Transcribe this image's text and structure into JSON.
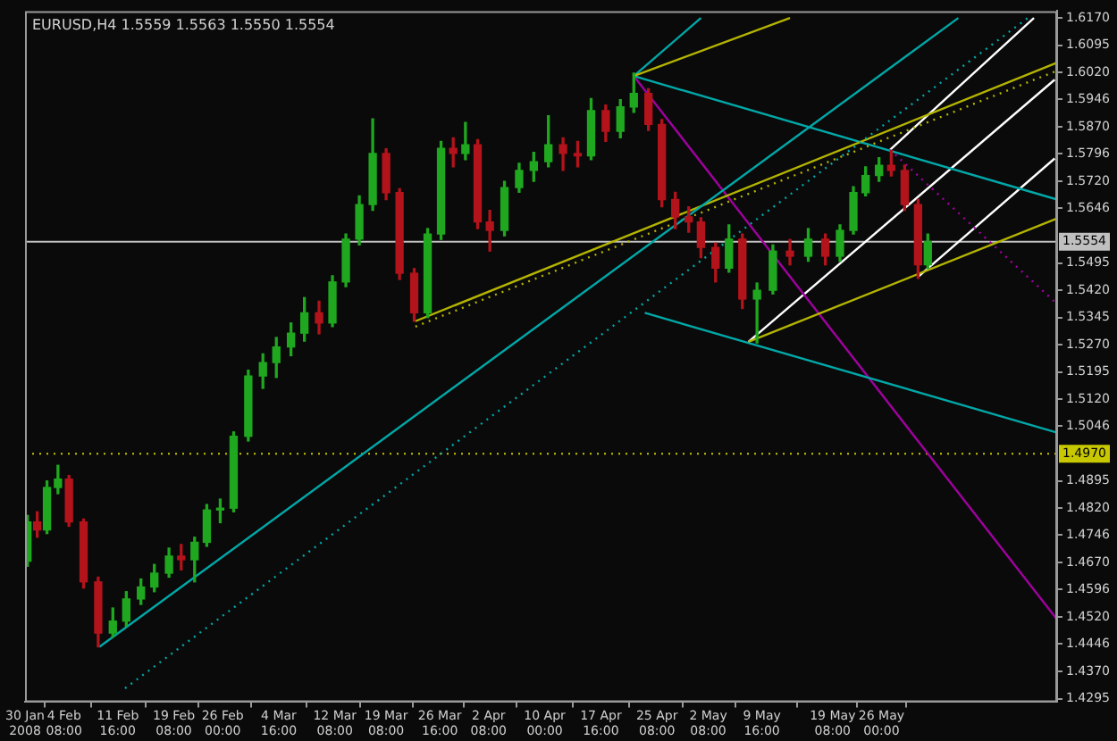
{
  "chart_data": {
    "type": "candlestick",
    "title": "EURUSD,H4 1.5559 1.5563 1.5550 1.5554",
    "xlim": [
      "2008-01-30T00:00",
      "2008-06-19T00:00"
    ],
    "xticks": [
      {
        "value": "2008-01-30T00:00",
        "label": "30 Jan 2008"
      },
      {
        "value": "2008-02-04T08:00",
        "label": "4 Feb 08:00"
      },
      {
        "value": "2008-02-11T16:00",
        "label": "11 Feb 16:00"
      },
      {
        "value": "2008-02-19T08:00",
        "label": "19 Feb 08:00"
      },
      {
        "value": "2008-02-26T00:00",
        "label": "26 Feb 00:00"
      },
      {
        "value": "2008-03-04T16:00",
        "label": "4 Mar 16:00"
      },
      {
        "value": "2008-03-12T08:00",
        "label": "12 Mar 08:00"
      },
      {
        "value": "2008-03-19T08:00",
        "label": "19 Mar 08:00"
      },
      {
        "value": "2008-03-26T16:00",
        "label": "26 Mar 16:00"
      },
      {
        "value": "2008-04-02T08:00",
        "label": "2 Apr 08:00"
      },
      {
        "value": "2008-04-10T00:00",
        "label": "10 Apr 00:00"
      },
      {
        "value": "2008-04-17T16:00",
        "label": "17 Apr 16:00"
      },
      {
        "value": "2008-04-25T08:00",
        "label": "25 Apr 08:00"
      },
      {
        "value": "2008-05-02T08:00",
        "label": "2 May 08:00"
      },
      {
        "value": "2008-05-09T16:00",
        "label": "9 May 16:00"
      },
      {
        "value": "2008-05-19T08:00",
        "label": "19 May 08:00"
      },
      {
        "value": "2008-05-26T00:00",
        "label": "26 May 00:00"
      }
    ],
    "ylim": [
      1.4286,
      1.6189
    ],
    "yticks": [
      {
        "value": 1.617,
        "label": "1.6170"
      },
      {
        "value": 1.6095,
        "label": "1.6095"
      },
      {
        "value": 1.602,
        "label": "1.6020"
      },
      {
        "value": 1.5946,
        "label": "1.5946"
      },
      {
        "value": 1.587,
        "label": "1.5870"
      },
      {
        "value": 1.5796,
        "label": "1.5796"
      },
      {
        "value": 1.572,
        "label": "1.5720"
      },
      {
        "value": 1.5646,
        "label": "1.5646"
      },
      {
        "value": 1.5495,
        "label": "1.5495"
      },
      {
        "value": 1.542,
        "label": "1.5420"
      },
      {
        "value": 1.5345,
        "label": "1.5345"
      },
      {
        "value": 1.527,
        "label": "1.5270"
      },
      {
        "value": 1.5195,
        "label": "1.5195"
      },
      {
        "value": 1.512,
        "label": "1.5120"
      },
      {
        "value": 1.5046,
        "label": "1.5046"
      },
      {
        "value": 1.4895,
        "label": "1.4895"
      },
      {
        "value": 1.482,
        "label": "1.4820"
      },
      {
        "value": 1.4746,
        "label": "1.4746"
      },
      {
        "value": 1.467,
        "label": "1.4670"
      },
      {
        "value": 1.4596,
        "label": "1.4596"
      },
      {
        "value": 1.452,
        "label": "1.4520"
      },
      {
        "value": 1.4446,
        "label": "1.4446"
      },
      {
        "value": 1.437,
        "label": "1.4370"
      },
      {
        "value": 1.4295,
        "label": "1.4295"
      }
    ],
    "ref_lines": [
      {
        "axis": "y",
        "value": 1.5554,
        "label": "1.5554",
        "color": "#c0c0c0",
        "line_style": "solid"
      },
      {
        "axis": "y",
        "value": 1.497,
        "label": "1.4970",
        "color": "#c8c800",
        "line_style": "dotted"
      }
    ],
    "series": [
      {
        "type": "candlestick",
        "x": [
          "2008-01-30T08:00",
          "2008-01-31T16:00",
          "2008-02-02T00:00",
          "2008-02-03T12:00",
          "2008-02-05T00:00",
          "2008-02-07T00:00",
          "2008-02-09T00:00",
          "2008-02-11T00:00",
          "2008-02-12T20:00",
          "2008-02-14T20:00",
          "2008-02-16T16:00",
          "2008-02-18T16:00",
          "2008-02-20T08:00",
          "2008-02-22T04:00",
          "2008-02-23T20:00",
          "2008-02-25T16:00",
          "2008-02-27T12:00",
          "2008-02-29T12:00",
          "2008-03-02T12:00",
          "2008-03-04T08:00",
          "2008-03-06T08:00",
          "2008-03-08T04:00",
          "2008-03-10T04:00",
          "2008-03-12T00:00",
          "2008-03-13T20:00",
          "2008-03-15T16:00",
          "2008-03-17T12:00",
          "2008-03-19T08:00",
          "2008-03-21T04:00",
          "2008-03-23T04:00",
          "2008-03-25T00:00",
          "2008-03-26T20:00",
          "2008-03-28T12:00",
          "2008-03-30T04:00",
          "2008-03-31T20:00",
          "2008-04-02T12:00",
          "2008-04-04T12:00",
          "2008-04-06T12:00",
          "2008-04-08T12:00",
          "2008-04-10T12:00",
          "2008-04-12T12:00",
          "2008-04-14T12:00",
          "2008-04-16T08:00",
          "2008-04-18T08:00",
          "2008-04-20T08:00",
          "2008-04-22T04:00",
          "2008-04-24T04:00",
          "2008-04-26T00:00",
          "2008-04-27T20:00",
          "2008-04-29T16:00",
          "2008-05-01T08:00",
          "2008-05-03T08:00",
          "2008-05-05T04:00",
          "2008-05-07T00:00",
          "2008-05-09T00:00",
          "2008-05-11T04:00",
          "2008-05-13T12:00",
          "2008-05-16T00:00",
          "2008-05-18T08:00",
          "2008-05-20T08:00",
          "2008-05-22T04:00",
          "2008-05-23T20:00",
          "2008-05-25T16:00",
          "2008-05-27T08:00",
          "2008-05-29T04:00",
          "2008-05-31T00:00",
          "2008-06-01T08:00"
        ],
        "ohlc": [
          [
            1.4674,
            1.48,
            1.466,
            1.4782
          ],
          [
            1.4782,
            1.481,
            1.474,
            1.476
          ],
          [
            1.476,
            1.4895,
            1.475,
            1.4877
          ],
          [
            1.4877,
            1.4938,
            1.486,
            1.49
          ],
          [
            1.49,
            1.491,
            1.477,
            1.4782
          ],
          [
            1.4782,
            1.479,
            1.46,
            1.4617
          ],
          [
            1.4617,
            1.463,
            1.4438,
            1.4476
          ],
          [
            1.4476,
            1.4545,
            1.4465,
            1.4509
          ],
          [
            1.4509,
            1.459,
            1.4495,
            1.457
          ],
          [
            1.457,
            1.4625,
            1.4555,
            1.4603
          ],
          [
            1.4603,
            1.4665,
            1.459,
            1.4641
          ],
          [
            1.4641,
            1.471,
            1.463,
            1.4688
          ],
          [
            1.4688,
            1.472,
            1.465,
            1.4678
          ],
          [
            1.4678,
            1.474,
            1.4617,
            1.4726
          ],
          [
            1.4726,
            1.483,
            1.4715,
            1.4815
          ],
          [
            1.4815,
            1.4845,
            1.478,
            1.482
          ],
          [
            1.482,
            1.503,
            1.481,
            1.5018
          ],
          [
            1.5018,
            1.52,
            1.5005,
            1.5184
          ],
          [
            1.5184,
            1.5245,
            1.515,
            1.5221
          ],
          [
            1.5221,
            1.529,
            1.518,
            1.5264
          ],
          [
            1.5264,
            1.533,
            1.524,
            1.5302
          ],
          [
            1.5302,
            1.54,
            1.528,
            1.5358
          ],
          [
            1.5358,
            1.539,
            1.53,
            1.533
          ],
          [
            1.533,
            1.546,
            1.532,
            1.5443
          ],
          [
            1.5443,
            1.5575,
            1.543,
            1.5561
          ],
          [
            1.5561,
            1.568,
            1.5545,
            1.5656
          ],
          [
            1.5656,
            1.5892,
            1.564,
            1.5797
          ],
          [
            1.5797,
            1.581,
            1.567,
            1.5689
          ],
          [
            1.5689,
            1.57,
            1.545,
            1.5467
          ],
          [
            1.5467,
            1.548,
            1.5335,
            1.5358
          ],
          [
            1.5358,
            1.559,
            1.5345,
            1.5575
          ],
          [
            1.5575,
            1.583,
            1.556,
            1.5811
          ],
          [
            1.5811,
            1.584,
            1.576,
            1.5797
          ],
          [
            1.5797,
            1.5882,
            1.578,
            1.5821
          ],
          [
            1.5821,
            1.5835,
            1.559,
            1.5608
          ],
          [
            1.5608,
            1.564,
            1.5528,
            1.5585
          ],
          [
            1.5585,
            1.572,
            1.557,
            1.5703
          ],
          [
            1.5703,
            1.577,
            1.569,
            1.575
          ],
          [
            1.575,
            1.58,
            1.572,
            1.5774
          ],
          [
            1.5774,
            1.5901,
            1.576,
            1.5821
          ],
          [
            1.5821,
            1.584,
            1.575,
            1.5797
          ],
          [
            1.5797,
            1.583,
            1.576,
            1.579
          ],
          [
            1.579,
            1.5948,
            1.578,
            1.5915
          ],
          [
            1.5915,
            1.593,
            1.583,
            1.5858
          ],
          [
            1.5858,
            1.5945,
            1.584,
            1.5925
          ],
          [
            1.5925,
            1.6018,
            1.591,
            1.5962
          ],
          [
            1.5962,
            1.5975,
            1.586,
            1.5877
          ],
          [
            1.5877,
            1.589,
            1.565,
            1.567
          ],
          [
            1.567,
            1.569,
            1.559,
            1.5622
          ],
          [
            1.5622,
            1.565,
            1.558,
            1.5608
          ],
          [
            1.5608,
            1.562,
            1.551,
            1.5538
          ],
          [
            1.5538,
            1.555,
            1.5443,
            1.5481
          ],
          [
            1.5481,
            1.56,
            1.547,
            1.5561
          ],
          [
            1.5561,
            1.5575,
            1.537,
            1.5396
          ],
          [
            1.5396,
            1.544,
            1.5275,
            1.542
          ],
          [
            1.542,
            1.5545,
            1.541,
            1.5528
          ],
          [
            1.5528,
            1.556,
            1.549,
            1.5514
          ],
          [
            1.5514,
            1.559,
            1.55,
            1.5561
          ],
          [
            1.5561,
            1.5575,
            1.549,
            1.5514
          ],
          [
            1.5514,
            1.56,
            1.55,
            1.5585
          ],
          [
            1.5585,
            1.5705,
            1.5575,
            1.5689
          ],
          [
            1.5689,
            1.576,
            1.568,
            1.5736
          ],
          [
            1.5736,
            1.5785,
            1.572,
            1.5764
          ],
          [
            1.5764,
            1.5805,
            1.5735,
            1.575
          ],
          [
            1.575,
            1.5765,
            1.564,
            1.5656
          ],
          [
            1.5656,
            1.567,
            1.5453,
            1.549
          ],
          [
            1.549,
            1.5575,
            1.548,
            1.5554
          ]
        ],
        "colors": [
          "#1fa81f",
          "#b3131b",
          "#1fa81f",
          "#1fa81f",
          "#b3131b",
          "#b3131b",
          "#b3131b",
          "#1fa81f",
          "#1fa81f",
          "#1fa81f",
          "#1fa81f",
          "#1fa81f",
          "#b3131b",
          "#1fa81f",
          "#1fa81f",
          "#1fa81f",
          "#1fa81f",
          "#1fa81f",
          "#1fa81f",
          "#1fa81f",
          "#1fa81f",
          "#1fa81f",
          "#b3131b",
          "#1fa81f",
          "#1fa81f",
          "#1fa81f",
          "#1fa81f",
          "#b3131b",
          "#b3131b",
          "#b3131b",
          "#1fa81f",
          "#1fa81f",
          "#b3131b",
          "#1fa81f",
          "#b3131b",
          "#b3131b",
          "#1fa81f",
          "#1fa81f",
          "#1fa81f",
          "#1fa81f",
          "#b3131b",
          "#b3131b",
          "#1fa81f",
          "#b3131b",
          "#1fa81f",
          "#1fa81f",
          "#b3131b",
          "#b3131b",
          "#b3131b",
          "#b3131b",
          "#b3131b",
          "#b3131b",
          "#1fa81f",
          "#b3131b",
          "#1fa81f",
          "#1fa81f",
          "#b3131b",
          "#1fa81f",
          "#b3131b",
          "#1fa81f",
          "#1fa81f",
          "#1fa81f",
          "#1fa81f",
          "#b3131b",
          "#b3131b",
          "#b3131b",
          "#1fa81f"
        ]
      },
      {
        "type": "line",
        "x": [
          "2008-02-09T04:00",
          "2008-06-05T12:00"
        ],
        "values": [
          1.4438,
          1.617
        ],
        "color": "#00a8a8",
        "line_style": "solid"
      },
      {
        "type": "line",
        "x": [
          "2008-02-12T16:00",
          "2008-06-15T00:00"
        ],
        "values": [
          1.4324,
          1.617
        ],
        "color": "#00a8a8",
        "line_style": "dotted"
      },
      {
        "type": "line",
        "x": [
          "2008-03-23T08:00",
          "2008-06-19T00:00"
        ],
        "values": [
          1.5335,
          1.6047
        ],
        "color": "#b4b400",
        "line_style": "solid"
      },
      {
        "type": "line",
        "x": [
          "2008-03-23T08:00",
          "2008-06-19T00:00"
        ],
        "values": [
          1.532,
          1.6025
        ],
        "color": "#b4b400",
        "line_style": "dotted"
      },
      {
        "type": "line",
        "x": [
          "2008-05-07T20:00",
          "2008-06-19T00:00"
        ],
        "values": [
          1.5278,
          1.5618
        ],
        "color": "#b4b400",
        "line_style": "solid"
      },
      {
        "type": "line",
        "x": [
          "2008-04-22T04:00",
          "2008-05-13T12:00"
        ],
        "values": [
          1.601,
          1.617
        ],
        "color": "#b4b400",
        "line_style": "solid"
      },
      {
        "type": "line",
        "x": [
          "2008-04-22T04:00",
          "2008-05-01T08:00"
        ],
        "values": [
          1.601,
          1.617
        ],
        "color": "#00a8a8",
        "line_style": "solid"
      },
      {
        "type": "line",
        "x": [
          "2008-04-22T04:00",
          "2008-06-19T00:00"
        ],
        "values": [
          1.601,
          1.567
        ],
        "color": "#00a8a8",
        "line_style": "solid"
      },
      {
        "type": "line",
        "x": [
          "2008-04-23T16:00",
          "2008-06-19T00:00"
        ],
        "values": [
          1.5358,
          1.5028
        ],
        "color": "#00a8a8",
        "line_style": "solid"
      },
      {
        "type": "line",
        "x": [
          "2008-04-22T04:00",
          "2008-06-19T00:00"
        ],
        "values": [
          1.601,
          1.4513
        ],
        "color": "#a000a0",
        "line_style": "solid"
      },
      {
        "type": "line",
        "x": [
          "2008-05-27T04:00",
          "2008-06-19T00:00"
        ],
        "values": [
          1.5807,
          1.5382
        ],
        "color": "#a000a0",
        "line_style": "dotted"
      },
      {
        "type": "line",
        "x": [
          "2008-05-07T20:00",
          "2008-06-18T16:00"
        ],
        "values": [
          1.5278,
          1.6
        ],
        "color": "#ffffff",
        "line_style": "solid"
      },
      {
        "type": "line",
        "x": [
          "2008-05-27T04:00",
          "2008-06-15T20:00"
        ],
        "values": [
          1.5807,
          1.617
        ],
        "color": "#ffffff",
        "line_style": "solid"
      },
      {
        "type": "line",
        "x": [
          "2008-05-31T00:00",
          "2008-06-18T16:00"
        ],
        "values": [
          1.5457,
          1.5783
        ],
        "color": "#ffffff",
        "line_style": "solid"
      }
    ]
  }
}
